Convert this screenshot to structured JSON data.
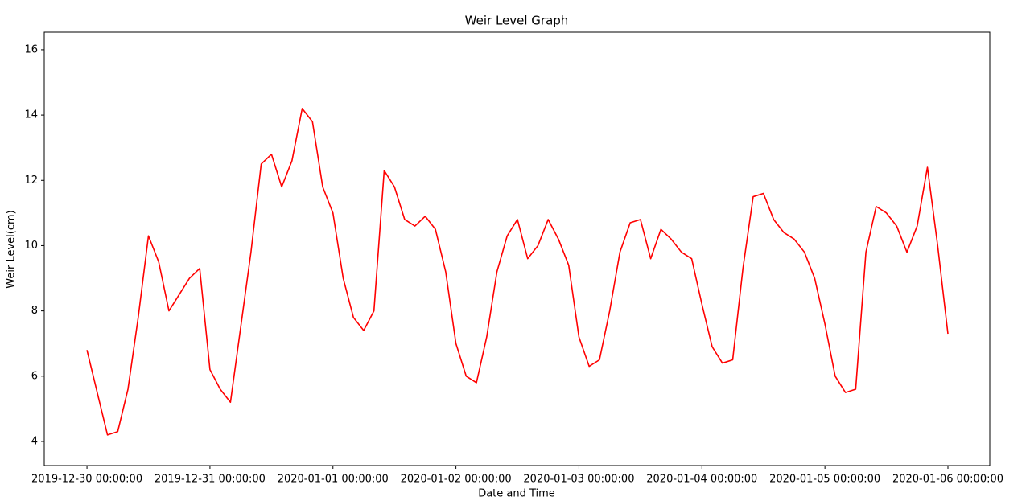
{
  "chart_data": {
    "type": "line",
    "title": "Weir Level Graph",
    "x_label": "Date and Time",
    "y_label": "Weir Level(cm)",
    "x": [
      "2019-12-30 00:00:00",
      "2019-12-30 02:00:00",
      "2019-12-30 04:00:00",
      "2019-12-30 06:00:00",
      "2019-12-30 08:00:00",
      "2019-12-30 10:00:00",
      "2019-12-30 12:00:00",
      "2019-12-30 14:00:00",
      "2019-12-30 16:00:00",
      "2019-12-30 18:00:00",
      "2019-12-30 20:00:00",
      "2019-12-30 22:00:00",
      "2019-12-31 00:00:00",
      "2019-12-31 02:00:00",
      "2019-12-31 04:00:00",
      "2019-12-31 06:00:00",
      "2019-12-31 08:00:00",
      "2019-12-31 10:00:00",
      "2019-12-31 12:00:00",
      "2019-12-31 14:00:00",
      "2019-12-31 16:00:00",
      "2019-12-31 18:00:00",
      "2019-12-31 20:00:00",
      "2019-12-31 22:00:00",
      "2020-01-01 00:00:00",
      "2020-01-01 02:00:00",
      "2020-01-01 04:00:00",
      "2020-01-01 06:00:00",
      "2020-01-01 08:00:00",
      "2020-01-01 10:00:00",
      "2020-01-01 12:00:00",
      "2020-01-01 14:00:00",
      "2020-01-01 16:00:00",
      "2020-01-01 18:00:00",
      "2020-01-01 20:00:00",
      "2020-01-01 22:00:00",
      "2020-01-02 00:00:00",
      "2020-01-02 02:00:00",
      "2020-01-02 04:00:00",
      "2020-01-02 06:00:00",
      "2020-01-02 08:00:00",
      "2020-01-02 10:00:00",
      "2020-01-02 12:00:00",
      "2020-01-02 14:00:00",
      "2020-01-02 16:00:00",
      "2020-01-02 18:00:00",
      "2020-01-02 20:00:00",
      "2020-01-02 22:00:00",
      "2020-01-03 00:00:00",
      "2020-01-03 02:00:00",
      "2020-01-03 04:00:00",
      "2020-01-03 06:00:00",
      "2020-01-03 08:00:00",
      "2020-01-03 10:00:00",
      "2020-01-03 12:00:00",
      "2020-01-03 14:00:00",
      "2020-01-03 16:00:00",
      "2020-01-03 18:00:00",
      "2020-01-03 20:00:00",
      "2020-01-03 22:00:00",
      "2020-01-04 00:00:00",
      "2020-01-04 02:00:00",
      "2020-01-04 04:00:00",
      "2020-01-04 06:00:00",
      "2020-01-04 08:00:00",
      "2020-01-04 10:00:00",
      "2020-01-04 12:00:00",
      "2020-01-04 14:00:00",
      "2020-01-04 16:00:00",
      "2020-01-04 18:00:00",
      "2020-01-04 20:00:00",
      "2020-01-04 22:00:00",
      "2020-01-05 00:00:00",
      "2020-01-05 02:00:00",
      "2020-01-05 04:00:00",
      "2020-01-05 06:00:00",
      "2020-01-05 08:00:00",
      "2020-01-05 10:00:00",
      "2020-01-05 12:00:00",
      "2020-01-05 14:00:00",
      "2020-01-05 16:00:00",
      "2020-01-05 18:00:00",
      "2020-01-05 20:00:00",
      "2020-01-05 22:00:00",
      "2020-01-06 00:00:00"
    ],
    "series": [
      {
        "color": "#ff0000",
        "values": [
          6.8,
          5.5,
          4.2,
          4.3,
          5.6,
          7.8,
          10.3,
          9.5,
          8.0,
          8.5,
          9.0,
          9.3,
          6.2,
          5.6,
          5.2,
          7.5,
          9.8,
          12.5,
          12.8,
          11.8,
          12.6,
          14.2,
          13.8,
          11.8,
          11.0,
          9.0,
          7.8,
          7.4,
          8.0,
          12.3,
          11.8,
          10.8,
          10.6,
          10.9,
          10.5,
          9.2,
          7.0,
          6.0,
          5.8,
          7.2,
          9.2,
          10.3,
          10.8,
          9.6,
          10.0,
          10.8,
          10.2,
          9.4,
          7.2,
          6.3,
          6.5,
          8.0,
          9.8,
          10.7,
          10.8,
          9.6,
          10.5,
          10.2,
          9.8,
          9.6,
          8.2,
          6.9,
          6.4,
          6.5,
          9.3,
          11.5,
          11.6,
          10.8,
          10.4,
          10.2,
          9.8,
          9.0,
          7.6,
          6.0,
          5.5,
          5.6,
          9.8,
          11.2,
          11.0,
          10.6,
          9.8,
          10.6,
          12.4,
          10.0,
          7.3
        ]
      }
    ],
    "xlim": [
      "2019-12-29 15:40:00",
      "2020-01-06 08:10:00"
    ],
    "xticks": [
      "2019-12-30 00:00:00",
      "2019-12-31 00:00:00",
      "2020-01-01 00:00:00",
      "2020-01-02 00:00:00",
      "2020-01-03 00:00:00",
      "2020-01-04 00:00:00",
      "2020-01-05 00:00:00",
      "2020-01-06 00:00:00"
    ],
    "ylim": [
      3.26,
      16.54
    ],
    "yticks": [
      4,
      6,
      8,
      10,
      12,
      14,
      16
    ],
    "grid": false
  }
}
